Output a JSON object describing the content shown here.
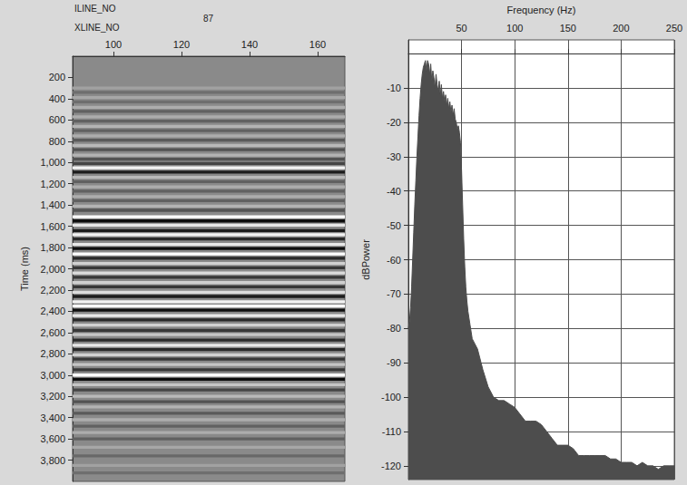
{
  "chart_data": [
    {
      "type": "seismic_section",
      "inline_label": "ILINE_NO",
      "inline": 87,
      "x_label": "XLINE_NO",
      "y_label": "Time (ms)",
      "xlim": [
        88,
        168
      ],
      "xticks": [
        100,
        120,
        140,
        160
      ],
      "ylim": [
        0,
        4000
      ],
      "yticks": [
        200,
        400,
        600,
        800,
        1000,
        1200,
        1400,
        1600,
        1800,
        2000,
        2200,
        2400,
        2600,
        2800,
        3000,
        3200,
        3400,
        3600,
        3800
      ],
      "reflectors": {
        "time": [
          300,
          340,
          390,
          430,
          480,
          520,
          570,
          610,
          660,
          700,
          750,
          790,
          840,
          880,
          930,
          970,
          1010,
          1050,
          1090,
          1140,
          1180,
          1230,
          1270,
          1320,
          1360,
          1410,
          1450,
          1510,
          1550,
          1590,
          1640,
          1680,
          1720,
          1770,
          1810,
          1860,
          1900,
          1950,
          1990,
          2040,
          2080,
          2130,
          2170,
          2220,
          2260,
          2310,
          2350,
          2390,
          2440,
          2480,
          2530,
          2580,
          2620,
          2670,
          2720,
          2760,
          2810,
          2850,
          2900,
          2950,
          3000,
          3040,
          3090,
          3140,
          3200,
          3250,
          3300,
          3360,
          3420,
          3480,
          3540,
          3600,
          3680,
          3760,
          3850,
          3920
        ],
        "amplitude": [
          0.2,
          -0.2,
          0.25,
          -0.2,
          0.3,
          -0.3,
          0.3,
          -0.3,
          0.35,
          -0.3,
          0.3,
          -0.35,
          0.4,
          -0.4,
          0.35,
          -0.4,
          -0.5,
          0.9,
          -0.8,
          0.4,
          -0.3,
          0.3,
          -0.3,
          0.3,
          -0.3,
          0.35,
          -0.4,
          1.0,
          -0.9,
          0.8,
          -0.8,
          0.9,
          -0.7,
          0.8,
          -0.9,
          1.0,
          -0.7,
          0.6,
          -0.6,
          0.7,
          -0.6,
          0.6,
          -0.6,
          0.7,
          -0.8,
          0.9,
          1.0,
          -0.9,
          0.8,
          -0.7,
          0.6,
          -0.6,
          0.5,
          -0.7,
          0.8,
          -0.7,
          0.6,
          -0.6,
          0.5,
          -0.6,
          1.0,
          -0.9,
          0.5,
          -0.5,
          0.4,
          -0.4,
          0.35,
          -0.35,
          0.3,
          -0.3,
          0.3,
          -0.3,
          0.25,
          -0.25,
          0.2,
          -0.2
        ]
      }
    },
    {
      "type": "area",
      "x_label": "Frequency (Hz)",
      "y_label": "dBPower",
      "x": [
        0,
        1,
        2,
        3,
        4,
        5,
        6,
        7,
        8,
        9,
        10,
        11,
        12,
        13,
        14,
        15,
        16,
        17,
        18,
        19,
        20,
        21,
        22,
        23,
        24,
        25,
        26,
        27,
        28,
        29,
        30,
        31,
        32,
        33,
        34,
        35,
        36,
        37,
        38,
        39,
        40,
        41,
        42,
        43,
        44,
        45,
        46,
        47,
        48,
        49,
        50,
        51,
        52,
        53,
        54,
        55,
        56,
        57,
        58,
        59,
        60,
        65,
        70,
        75,
        80,
        85,
        90,
        95,
        100,
        105,
        110,
        115,
        120,
        125,
        130,
        135,
        140,
        145,
        150,
        155,
        160,
        165,
        170,
        175,
        180,
        185,
        190,
        195,
        200,
        205,
        210,
        215,
        220,
        225,
        230,
        235,
        240,
        245,
        250
      ],
      "values": [
        -80,
        -78,
        -74,
        -68,
        -60,
        -52,
        -44,
        -37,
        -30,
        -24,
        -18,
        -13,
        -9,
        -6,
        -4,
        -3,
        -2,
        -5,
        -2,
        -3,
        -6,
        -3,
        -8,
        -5,
        -7,
        -10,
        -6,
        -9,
        -11,
        -8,
        -12,
        -9,
        -13,
        -11,
        -14,
        -12,
        -15,
        -13,
        -16,
        -14,
        -17,
        -15,
        -18,
        -16,
        -19,
        -20,
        -22,
        -21,
        -23,
        -26,
        -34,
        -44,
        -54,
        -62,
        -68,
        -72,
        -75,
        -77,
        -79,
        -81,
        -83,
        -86,
        -92,
        -97,
        -100,
        -101,
        -101,
        -102,
        -103,
        -105,
        -107,
        -107,
        -107,
        -108,
        -110,
        -112,
        -114,
        -114,
        -114,
        -115,
        -117,
        -117,
        -117,
        -117,
        -117,
        -117,
        -118,
        -118,
        -119,
        -119,
        -119,
        -120,
        -119,
        -120,
        -120,
        -121,
        -120,
        -120,
        -120
      ],
      "color": "#4d4d4d",
      "xlim": [
        0,
        250
      ],
      "xticks": [
        50,
        100,
        150,
        200,
        250
      ],
      "ylim": [
        -124,
        4
      ],
      "yticks": [
        -120,
        -110,
        -100,
        -90,
        -80,
        -70,
        -60,
        -50,
        -40,
        -30,
        -20,
        -10
      ],
      "grid": true
    }
  ]
}
